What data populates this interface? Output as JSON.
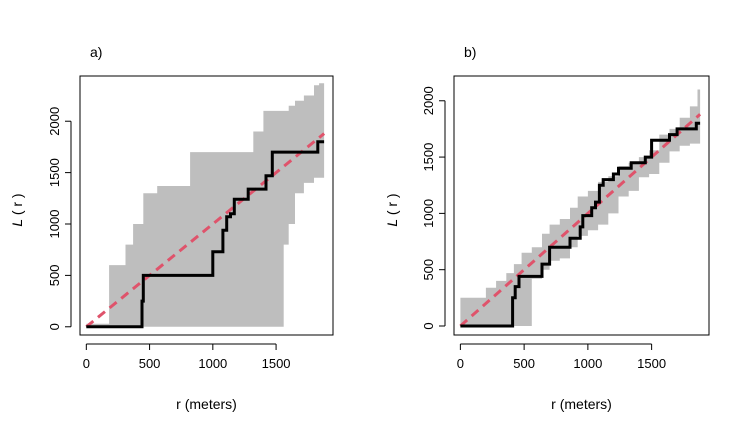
{
  "chart_data": [
    {
      "type": "line",
      "panel_label": "a)",
      "xlabel": "r (meters)",
      "ylabel_main": "L",
      "ylabel_arg": "( r )",
      "xlim": [
        -50,
        1950
      ],
      "ylim": [
        -80,
        2440
      ],
      "xticks": [
        0,
        500,
        1000,
        1500
      ],
      "yticks": [
        0,
        500,
        1000,
        1500,
        2000
      ],
      "grid": false,
      "legend": "none",
      "colors": {
        "envelope": "#bebebe",
        "observed": "#000000",
        "theoretical": "#df536b"
      },
      "envelope": {
        "x": [
          0,
          180,
          230,
          310,
          370,
          450,
          560,
          820,
          980,
          1100,
          1200,
          1320,
          1400,
          1560,
          1600,
          1650,
          1720,
          1800,
          1840,
          1880
        ],
        "upper": [
          30,
          600,
          600,
          800,
          1000,
          1300,
          1370,
          1700,
          1700,
          1700,
          1700,
          1900,
          2100,
          2100,
          2150,
          2200,
          2250,
          2350,
          2370,
          2370
        ],
        "lower": [
          0,
          0,
          0,
          0,
          0,
          0,
          0,
          0,
          0,
          0,
          0,
          0,
          0,
          0,
          800,
          1000,
          1300,
          1400,
          1450,
          1450
        ]
      },
      "observed": {
        "x": [
          0,
          430,
          440,
          450,
          980,
          1000,
          1050,
          1080,
          1110,
          1140,
          1170,
          1230,
          1280,
          1360,
          1420,
          1470,
          1540,
          1640,
          1800,
          1830,
          1880
        ],
        "y": [
          0,
          0,
          250,
          500,
          500,
          730,
          730,
          940,
          1070,
          1100,
          1240,
          1240,
          1340,
          1340,
          1470,
          1700,
          1700,
          1700,
          1700,
          1800,
          1800
        ]
      },
      "theoretical": {
        "x": [
          0,
          1880
        ],
        "y": [
          0,
          1880
        ]
      }
    },
    {
      "type": "line",
      "panel_label": "b)",
      "xlabel": "r (meters)",
      "ylabel_main": "L",
      "ylabel_arg": "( r )",
      "xlim": [
        -50,
        1950
      ],
      "ylim": [
        -80,
        2220
      ],
      "xticks": [
        0,
        500,
        1000,
        1500
      ],
      "yticks": [
        0,
        500,
        1000,
        1500,
        2000
      ],
      "grid": false,
      "legend": "none",
      "colors": {
        "envelope": "#bebebe",
        "observed": "#000000",
        "theoretical": "#df536b"
      },
      "envelope": {
        "x": [
          0,
          120,
          200,
          280,
          360,
          420,
          480,
          560,
          640,
          700,
          780,
          860,
          920,
          1000,
          1080,
          1160,
          1240,
          1320,
          1400,
          1480,
          1560,
          1640,
          1720,
          1800,
          1860,
          1880
        ],
        "upper": [
          250,
          250,
          340,
          400,
          470,
          550,
          650,
          700,
          820,
          900,
          950,
          1050,
          1150,
          1200,
          1280,
          1330,
          1420,
          1450,
          1500,
          1560,
          1700,
          1750,
          1850,
          1950,
          2100,
          2150
        ],
        "lower": [
          0,
          0,
          0,
          0,
          0,
          0,
          0,
          0,
          420,
          500,
          580,
          600,
          700,
          800,
          850,
          900,
          1000,
          1150,
          1200,
          1320,
          1350,
          1450,
          1550,
          1600,
          1620,
          1620
        ]
      },
      "observed": {
        "x": [
          0,
          400,
          410,
          430,
          460,
          620,
          640,
          680,
          700,
          830,
          860,
          900,
          940,
          960,
          1000,
          1030,
          1060,
          1090,
          1120,
          1160,
          1200,
          1240,
          1290,
          1340,
          1400,
          1450,
          1500,
          1530,
          1600,
          1640,
          1700,
          1760,
          1800,
          1850,
          1880
        ],
        "y": [
          0,
          0,
          250,
          350,
          440,
          440,
          550,
          550,
          700,
          700,
          780,
          780,
          880,
          980,
          980,
          1050,
          1100,
          1250,
          1300,
          1300,
          1350,
          1400,
          1400,
          1450,
          1450,
          1500,
          1650,
          1650,
          1650,
          1700,
          1750,
          1750,
          1750,
          1800,
          1800
        ]
      },
      "theoretical": {
        "x": [
          0,
          1880
        ],
        "y": [
          0,
          1880
        ]
      }
    }
  ]
}
